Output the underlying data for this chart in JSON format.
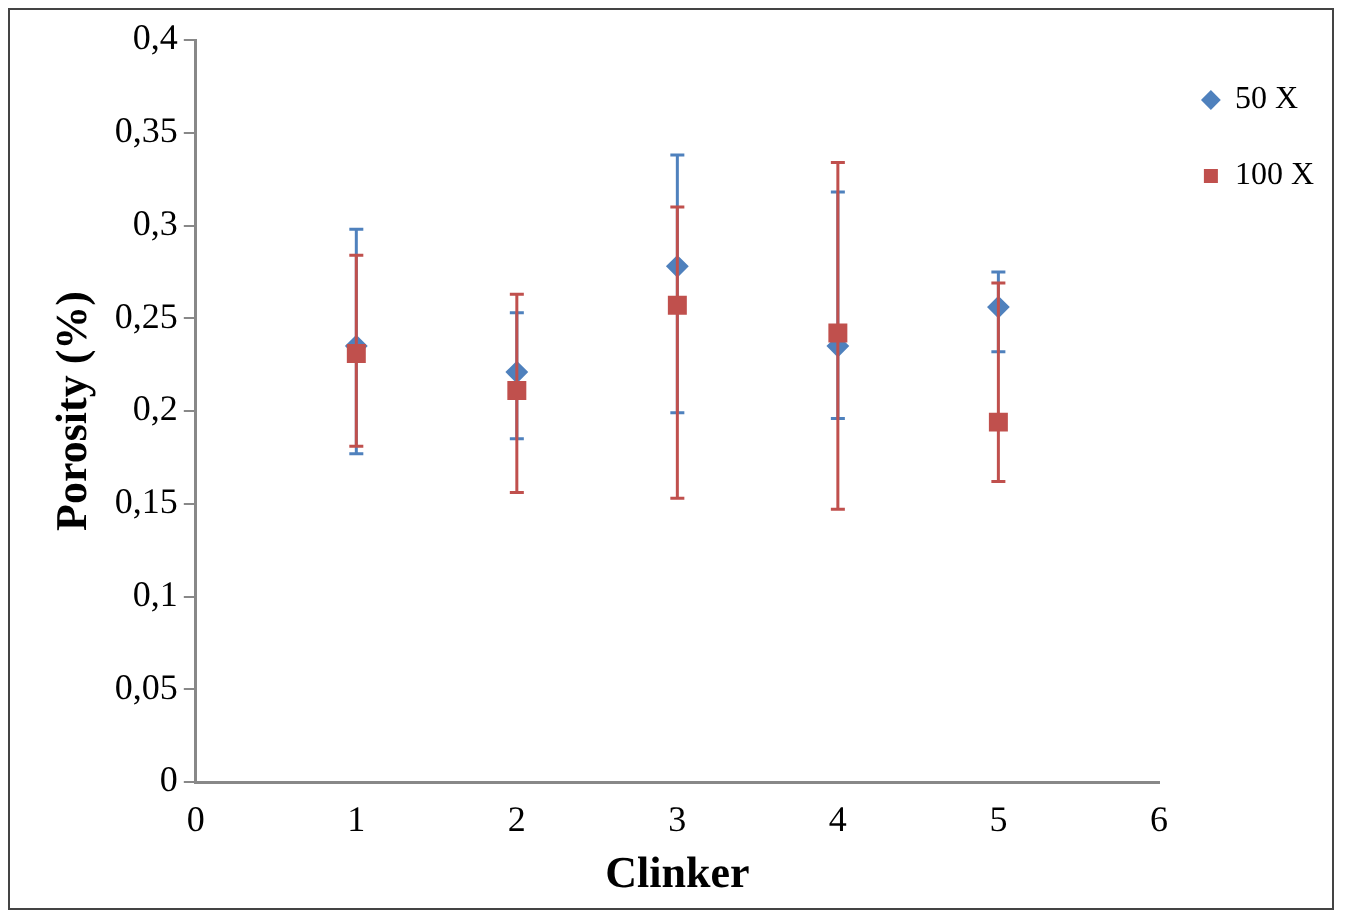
{
  "chart_data": {
    "type": "scatter",
    "xlabel": "Clinker",
    "ylabel": "Porosity (%)",
    "x": [
      1,
      2,
      3,
      4,
      5
    ],
    "xlim": [
      0,
      6
    ],
    "xticks": [
      0,
      1,
      2,
      3,
      4,
      5,
      6
    ],
    "ylim": [
      0,
      0.4
    ],
    "yticks": [
      {
        "value": 0,
        "label": "0"
      },
      {
        "value": 0.05,
        "label": "0,05"
      },
      {
        "value": 0.1,
        "label": "0,1"
      },
      {
        "value": 0.15,
        "label": "0,15"
      },
      {
        "value": 0.2,
        "label": "0,2"
      },
      {
        "value": 0.25,
        "label": "0,25"
      },
      {
        "value": 0.3,
        "label": "0,3"
      },
      {
        "value": 0.35,
        "label": "0,35"
      },
      {
        "value": 0.4,
        "label": "0,4"
      }
    ],
    "grid": false,
    "legend": "top right",
    "series": [
      {
        "name": "50 X",
        "color": "#4f81bd",
        "marker": "diamond",
        "values": [
          0.235,
          0.221,
          0.278,
          0.235,
          0.256
        ],
        "errors": [
          [
            0.177,
            0.298
          ],
          [
            0.185,
            0.253
          ],
          [
            0.199,
            0.338
          ],
          [
            0.196,
            0.318
          ],
          [
            0.232,
            0.275
          ]
        ]
      },
      {
        "name": "100 X",
        "color": "#c0504d",
        "marker": "square",
        "values": [
          0.231,
          0.211,
          0.257,
          0.242,
          0.194
        ],
        "errors": [
          [
            0.181,
            0.284
          ],
          [
            0.156,
            0.263
          ],
          [
            0.153,
            0.31
          ],
          [
            0.147,
            0.334
          ],
          [
            0.162,
            0.269
          ]
        ]
      }
    ]
  }
}
